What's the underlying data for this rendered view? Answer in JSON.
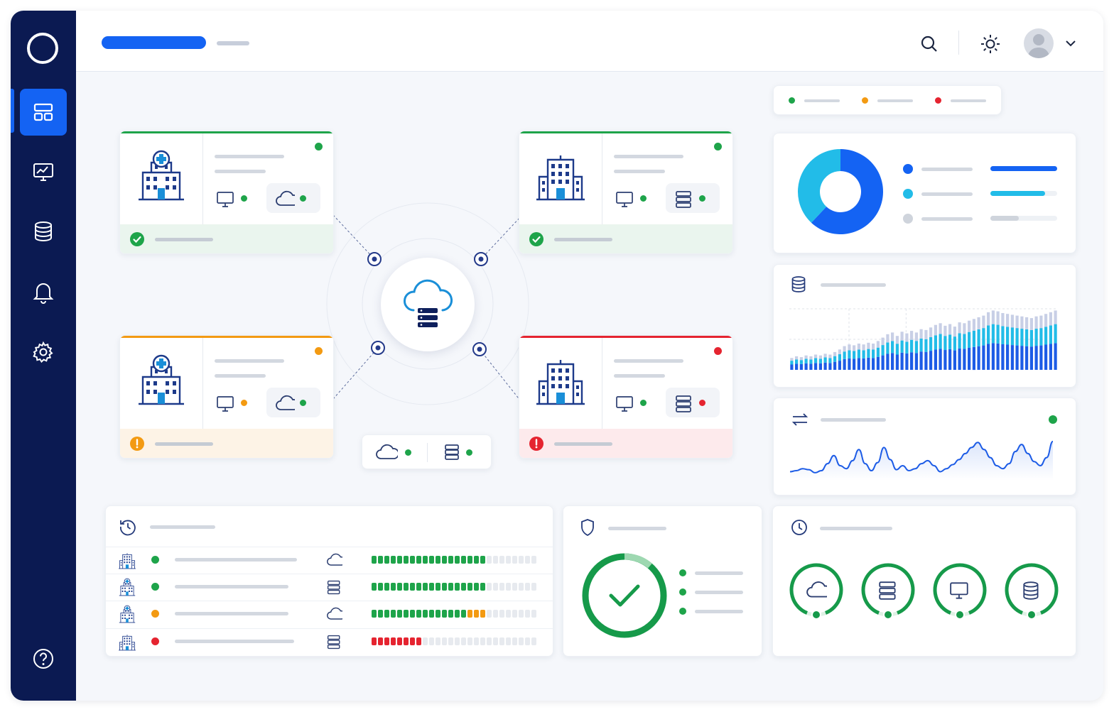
{
  "app": {
    "brand_color": "#1463f3",
    "sidebar_color": "#0b1a52",
    "status_colors": {
      "ok": "#1ea44a",
      "warning": "#f39a12",
      "error": "#e52430"
    }
  },
  "sidebar": {
    "items": [
      {
        "icon": "dashboard-icon",
        "active": true
      },
      {
        "icon": "monitor-chart-icon",
        "active": false
      },
      {
        "icon": "database-icon",
        "active": false
      },
      {
        "icon": "bell-icon",
        "active": false
      },
      {
        "icon": "gear-icon",
        "active": false
      }
    ],
    "help_icon": "help-circle-icon"
  },
  "header": {
    "icons": [
      "search-icon",
      "sun-icon",
      "avatar",
      "chevron-down-icon"
    ]
  },
  "legend": {
    "statuses": [
      "ok",
      "warning",
      "error"
    ]
  },
  "sites": [
    {
      "icon": "hospital-icon",
      "status": "ok",
      "chips": [
        {
          "icon": "monitor-icon",
          "status": "ok"
        },
        {
          "icon": "cloud-icon",
          "status": "ok"
        }
      ]
    },
    {
      "icon": "office-building-icon",
      "status": "ok",
      "chips": [
        {
          "icon": "monitor-icon",
          "status": "ok"
        },
        {
          "icon": "server-icon",
          "status": "ok"
        }
      ]
    },
    {
      "icon": "hospital-icon",
      "status": "warning",
      "chips": [
        {
          "icon": "monitor-icon",
          "status": "warning"
        },
        {
          "icon": "cloud-icon",
          "status": "ok"
        }
      ]
    },
    {
      "icon": "office-building-icon",
      "status": "error",
      "chips": [
        {
          "icon": "monitor-icon",
          "status": "ok"
        },
        {
          "icon": "server-icon",
          "status": "error"
        }
      ]
    }
  ],
  "hub": {
    "icon": "cloud-server-icon",
    "services": [
      {
        "icon": "cloud-icon",
        "status": "ok"
      },
      {
        "icon": "server-icon",
        "status": "ok"
      }
    ]
  },
  "donut": {
    "slices": [
      {
        "color": "#1463f3",
        "value": 0.62,
        "bar_fill": 1.0
      },
      {
        "color": "#22bce8",
        "value": 0.38,
        "bar_fill": 0.82
      },
      {
        "color": "#cfd4dc",
        "value": 0.0,
        "bar_fill": 0.43
      }
    ]
  },
  "storage_chart": {
    "icon": "database-icon",
    "series_colors": [
      "#1d5ce6",
      "#22bce8",
      "#c8cfe6"
    ],
    "totals": [
      14,
      16,
      15,
      17,
      16,
      18,
      17,
      19,
      18,
      21,
      24,
      28,
      30,
      29,
      31,
      30,
      32,
      31,
      34,
      38,
      42,
      44,
      40,
      45,
      43,
      46,
      44,
      48,
      47,
      50,
      53,
      55,
      52,
      54,
      51,
      56,
      55,
      58,
      60,
      62,
      64,
      68,
      70,
      69,
      67,
      66,
      65,
      64,
      63,
      62,
      61,
      63,
      64,
      66,
      68,
      70
    ]
  },
  "traffic_chart": {
    "icon": "transfer-arrows-icon",
    "status": "ok",
    "line_color": "#1d5ce6",
    "values": [
      6,
      7,
      9,
      8,
      5,
      7,
      14,
      22,
      12,
      9,
      17,
      28,
      14,
      7,
      15,
      30,
      18,
      8,
      12,
      7,
      9,
      14,
      17,
      12,
      6,
      9,
      13,
      18,
      24,
      30,
      35,
      28,
      20,
      12,
      9,
      14,
      26,
      33,
      24,
      16,
      12,
      20,
      36
    ]
  },
  "activity": {
    "icon": "history-icon",
    "rows": [
      {
        "site_icon": "office-building-icon",
        "status": "ok",
        "service_icon": "cloud-icon",
        "filled": 18,
        "fill_color": "#1ea44a",
        "extra": 0,
        "extra_color": "",
        "total": 26
      },
      {
        "site_icon": "hospital-icon",
        "status": "ok",
        "service_icon": "server-icon",
        "filled": 18,
        "fill_color": "#1ea44a",
        "extra": 0,
        "extra_color": "",
        "total": 26
      },
      {
        "site_icon": "hospital-icon",
        "status": "warning",
        "service_icon": "cloud-icon",
        "filled": 15,
        "fill_color": "#1ea44a",
        "extra": 3,
        "extra_color": "#f39a12",
        "total": 26
      },
      {
        "site_icon": "office-building-icon",
        "status": "error",
        "service_icon": "server-icon",
        "filled": 8,
        "fill_color": "#e52430",
        "extra": 0,
        "extra_color": "",
        "total": 26
      }
    ]
  },
  "security": {
    "icon": "shield-icon",
    "status": "ok",
    "list_count": 3
  },
  "uptime": {
    "icon": "clock-icon",
    "rings": [
      "cloud-icon",
      "server-icon",
      "monitor-icon",
      "database-icon"
    ]
  }
}
